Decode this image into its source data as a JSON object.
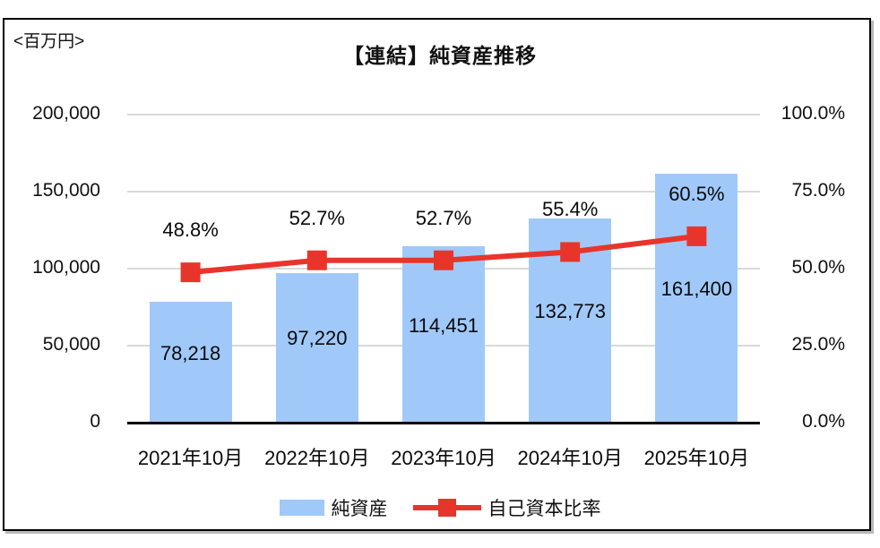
{
  "chart_data": {
    "type": "bar",
    "combo": "bar+line",
    "title": "【連結】純資産推移",
    "unit": "<百万円>",
    "categories": [
      "2021年10月",
      "2022年10月",
      "2023年10月",
      "2024年10月",
      "2025年10月"
    ],
    "series": [
      {
        "name": "純資産",
        "type": "bar",
        "axis": "left",
        "values": [
          78218,
          97220,
          114451,
          132773,
          161400
        ],
        "labels": [
          "78,218",
          "97,220",
          "114,451",
          "132,773",
          "161,400"
        ],
        "color": "#a0c9fa"
      },
      {
        "name": "自己資本比率",
        "type": "line",
        "axis": "right",
        "values": [
          48.8,
          52.7,
          52.7,
          55.4,
          60.5
        ],
        "labels": [
          "48.8%",
          "52.7%",
          "52.7%",
          "55.4%",
          "60.5%"
        ],
        "color": "#e8352c",
        "marker": "square"
      }
    ],
    "left_axis": {
      "min": 0,
      "max": 200000,
      "ticks": [
        "200,000",
        "150,000",
        "100,000",
        "50,000",
        "0"
      ]
    },
    "right_axis": {
      "min": 0,
      "max": 100,
      "ticks": [
        "100.0%",
        "75.0%",
        "50.0%",
        "25.0%",
        "0.0%"
      ]
    },
    "grid": true,
    "gridline_color": "#d9d9d9",
    "legend_position": "bottom"
  }
}
